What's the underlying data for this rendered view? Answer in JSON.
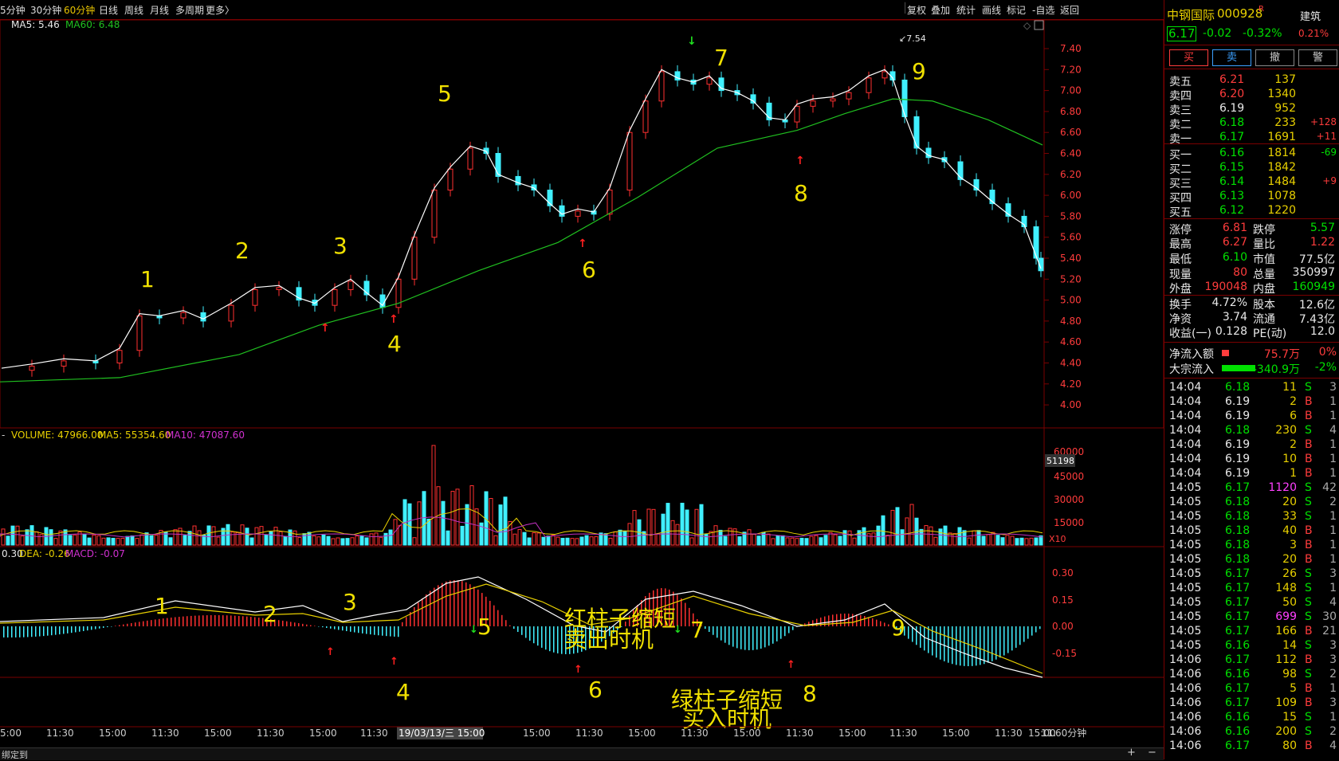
{
  "toolbar": {
    "timeframes": [
      "5分钟",
      "30分钟",
      "60分钟",
      "日线",
      "周线",
      "月线",
      "多周期",
      "更多〉"
    ],
    "active": "60分钟",
    "tools": [
      "复权",
      "叠加",
      "统计",
      "画线",
      "标记",
      "-自选",
      "返回"
    ]
  },
  "main_chart": {
    "ma_label": "MA5: 5.46",
    "ma60_label": "MA60: 6.48",
    "price_axis": [
      "7.40",
      "7.20",
      "7.00",
      "6.80",
      "6.60",
      "6.40",
      "6.20",
      "6.00",
      "5.80",
      "5.60",
      "5.40",
      "5.20",
      "5.00",
      "4.80",
      "4.60",
      "4.40",
      "4.20",
      "4.00"
    ],
    "high_marker": "7.54",
    "annotations": [
      "1",
      "2",
      "3",
      "4",
      "5",
      "6",
      "7",
      "8",
      "9"
    ]
  },
  "volume_panel": {
    "label_prefix": "-",
    "volume_label": "VOLUME: 47966.00",
    "ma5_label": "MA5: 55354.60",
    "ma10_label": "MA10: 47087.60",
    "axis": [
      "60000",
      "45000",
      "30000",
      "15000"
    ],
    "current_box": "51198",
    "unit": "X10"
  },
  "macd_panel": {
    "dif_label": "0.30",
    "dea_label": "DEA: -0.26",
    "macd_label": "MACD: -0.07",
    "axis": [
      "0.30",
      "0.15",
      "0.00",
      "-0.15"
    ],
    "annotations": [
      "1",
      "2",
      "3",
      "4",
      "5",
      "6",
      "7",
      "8",
      "9"
    ],
    "text_sell_1": "红柱子缩短",
    "text_sell_2": "卖出时机",
    "text_buy_1": "绿柱子缩短",
    "text_buy_2": "买入时机"
  },
  "time_axis": {
    "labels": [
      "5:00",
      "11:30",
      "15:00",
      "11:30",
      "15:00",
      "11:30",
      "15:00",
      "11:30",
      "19/03/13/三 15:00",
      "15:00",
      "11:30",
      "15:00",
      "11:30",
      "15:00",
      "11:30",
      "15:00",
      "11:30",
      "15:00",
      "11:30",
      "15:00",
      "11:"
    ],
    "period": "60分钟"
  },
  "bottom_bar": {
    "left_text": "绑定到"
  },
  "stock": {
    "name": "中钢国际",
    "code": "000928",
    "flag": "R",
    "sector": "建筑",
    "price": "6.17",
    "change": "-0.02",
    "change_pct": "-0.32%",
    "rate": "0.21%"
  },
  "trade_buttons": [
    "买",
    "卖",
    "撤",
    "警"
  ],
  "order_book": {
    "asks": [
      {
        "label": "卖五",
        "price": "6.21",
        "vol": "137",
        "chg": ""
      },
      {
        "label": "卖四",
        "price": "6.20",
        "vol": "1340",
        "chg": ""
      },
      {
        "label": "卖三",
        "price": "6.19",
        "vol": "952",
        "chg": ""
      },
      {
        "label": "卖二",
        "price": "6.18",
        "vol": "233",
        "chg": "+128"
      },
      {
        "label": "卖一",
        "price": "6.17",
        "vol": "1691",
        "chg": "+11"
      }
    ],
    "bids": [
      {
        "label": "买一",
        "price": "6.16",
        "vol": "1814",
        "chg": "-69"
      },
      {
        "label": "买二",
        "price": "6.15",
        "vol": "1842",
        "chg": ""
      },
      {
        "label": "买三",
        "price": "6.14",
        "vol": "1484",
        "chg": "+9"
      },
      {
        "label": "买四",
        "price": "6.13",
        "vol": "1078",
        "chg": ""
      },
      {
        "label": "买五",
        "price": "6.12",
        "vol": "1220",
        "chg": ""
      }
    ]
  },
  "quote_stats": [
    {
      "l1": "涨停",
      "v1": "6.81",
      "c1": "red",
      "l2": "跌停",
      "v2": "5.57",
      "c2": "green"
    },
    {
      "l1": "最高",
      "v1": "6.27",
      "c1": "red",
      "l2": "量比",
      "v2": "1.22",
      "c2": "red"
    },
    {
      "l1": "最低",
      "v1": "6.10",
      "c1": "green",
      "l2": "市值",
      "v2": "77.5亿",
      "c2": "wht"
    },
    {
      "l1": "现量",
      "v1": "80",
      "c1": "red",
      "l2": "总量",
      "v2": "350997",
      "c2": "wht"
    },
    {
      "l1": "外盘",
      "v1": "190048",
      "c1": "red",
      "l2": "内盘",
      "v2": "160949",
      "c2": "green"
    },
    {
      "l1": "换手",
      "v1": "4.72%",
      "c1": "wht",
      "l2": "股本",
      "v2": "12.6亿",
      "c2": "wht"
    },
    {
      "l1": "净资",
      "v1": "3.74",
      "c1": "wht",
      "l2": "流通",
      "v2": "7.43亿",
      "c2": "wht"
    },
    {
      "l1": "收益(一)",
      "v1": "0.128",
      "c1": "wht",
      "l2": "PE(动)",
      "v2": "12.0",
      "c2": "wht"
    }
  ],
  "flows": [
    {
      "label": "净流入额",
      "value": "75.7万",
      "pct": "0%",
      "color": "red",
      "bar": 0.15
    },
    {
      "label": "大宗流入",
      "value": "-340.9万",
      "pct": "-2%",
      "color": "green",
      "bar": 0.7
    }
  ],
  "ticks": [
    {
      "t": "14:04",
      "p": "6.18",
      "v": "11",
      "s": "S",
      "n": "3"
    },
    {
      "t": "14:04",
      "p": "6.19",
      "v": "2",
      "s": "B",
      "n": "1"
    },
    {
      "t": "14:04",
      "p": "6.19",
      "v": "6",
      "s": "B",
      "n": "1"
    },
    {
      "t": "14:04",
      "p": "6.18",
      "v": "230",
      "s": "S",
      "n": "4"
    },
    {
      "t": "14:04",
      "p": "6.19",
      "v": "2",
      "s": "B",
      "n": "1"
    },
    {
      "t": "14:04",
      "p": "6.19",
      "v": "10",
      "s": "B",
      "n": "1"
    },
    {
      "t": "14:04",
      "p": "6.19",
      "v": "1",
      "s": "B",
      "n": "1"
    },
    {
      "t": "14:05",
      "p": "6.17",
      "v": "1120",
      "s": "S",
      "n": "42"
    },
    {
      "t": "14:05",
      "p": "6.18",
      "v": "20",
      "s": "S",
      "n": "2"
    },
    {
      "t": "14:05",
      "p": "6.18",
      "v": "33",
      "s": "S",
      "n": "1"
    },
    {
      "t": "14:05",
      "p": "6.18",
      "v": "40",
      "s": "B",
      "n": "1"
    },
    {
      "t": "14:05",
      "p": "6.18",
      "v": "3",
      "s": "B",
      "n": "1"
    },
    {
      "t": "14:05",
      "p": "6.18",
      "v": "20",
      "s": "B",
      "n": "1"
    },
    {
      "t": "14:05",
      "p": "6.17",
      "v": "26",
      "s": "S",
      "n": "3"
    },
    {
      "t": "14:05",
      "p": "6.17",
      "v": "148",
      "s": "S",
      "n": "1"
    },
    {
      "t": "14:05",
      "p": "6.17",
      "v": "50",
      "s": "S",
      "n": "4"
    },
    {
      "t": "14:05",
      "p": "6.17",
      "v": "699",
      "s": "S",
      "n": "30"
    },
    {
      "t": "14:05",
      "p": "6.17",
      "v": "166",
      "s": "B",
      "n": "21"
    },
    {
      "t": "14:05",
      "p": "6.16",
      "v": "14",
      "s": "S",
      "n": "3"
    },
    {
      "t": "14:06",
      "p": "6.17",
      "v": "112",
      "s": "B",
      "n": "3"
    },
    {
      "t": "14:06",
      "p": "6.16",
      "v": "98",
      "s": "S",
      "n": "2"
    },
    {
      "t": "14:06",
      "p": "6.17",
      "v": "5",
      "s": "B",
      "n": "1"
    },
    {
      "t": "14:06",
      "p": "6.17",
      "v": "109",
      "s": "B",
      "n": "3"
    },
    {
      "t": "14:06",
      "p": "6.16",
      "v": "15",
      "s": "S",
      "n": "1"
    },
    {
      "t": "14:06",
      "p": "6.16",
      "v": "200",
      "s": "S",
      "n": "2"
    },
    {
      "t": "14:06",
      "p": "6.17",
      "v": "80",
      "s": "B",
      "n": "4"
    }
  ]
}
